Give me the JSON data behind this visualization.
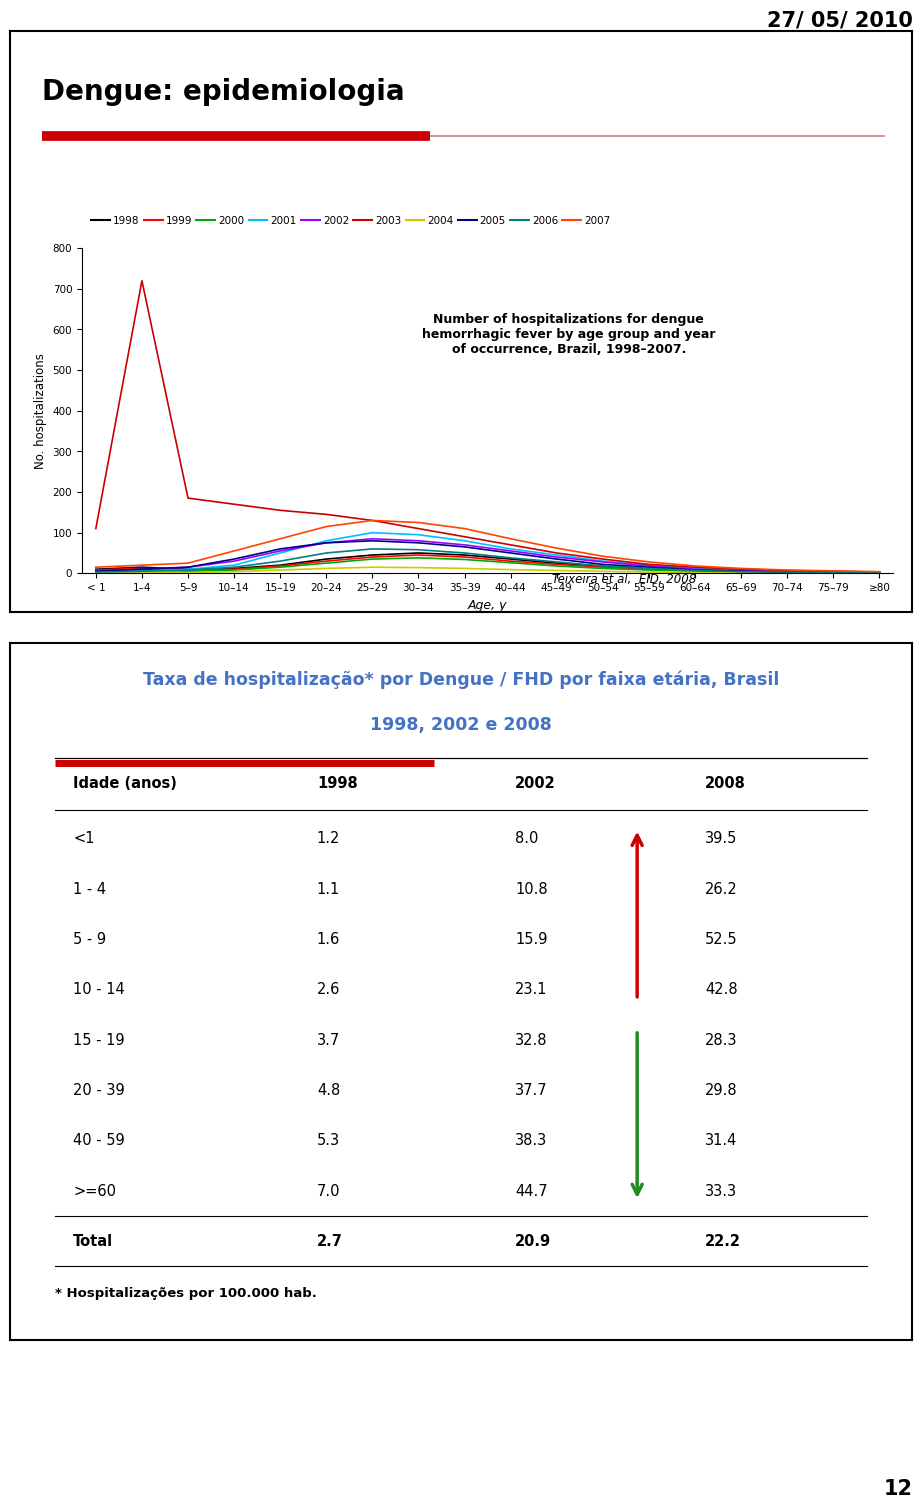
{
  "date_text": "27/ 05/ 2010",
  "page_number": "12",
  "slide_title": "Dengue: epidemiologia",
  "chart_annotation": "Number of hospitalizations for dengue\nhemorrhagic fever by age group and year\nof occurrence, Brazil, 1998–2007.",
  "source_text": "Teixeira et al,  EID, 2008",
  "table_title_line1": "Taxa de hospitalização* por Dengue / FHD por faixa etária, Brasil",
  "table_title_line2": "1998, 2002 e 2008",
  "table_title_color": "#4472C4",
  "table_headers": [
    "Idade (anos)",
    "1998",
    "2002",
    "2008"
  ],
  "table_rows": [
    [
      "<1",
      "1.2",
      "8.0",
      "39.5"
    ],
    [
      "1 - 4",
      "1.1",
      "10.8",
      "26.2"
    ],
    [
      "5 - 9",
      "1.6",
      "15.9",
      "52.5"
    ],
    [
      "10 - 14",
      "2.6",
      "23.1",
      "42.8"
    ],
    [
      "15 - 19",
      "3.7",
      "32.8",
      "28.3"
    ],
    [
      "20 - 39",
      "4.8",
      "37.7",
      "29.8"
    ],
    [
      "40 - 59",
      "5.3",
      "38.3",
      "31.4"
    ],
    [
      ">=60",
      "7.0",
      "44.7",
      "33.3"
    ],
    [
      "Total",
      "2.7",
      "20.9",
      "22.2"
    ]
  ],
  "footnote": "* Hospitalizações por 100.000 hab.",
  "ylabel": "No. hospitalizations",
  "xlabel": "Age, y",
  "age_groups": [
    "< 1",
    "1–4",
    "5–9",
    "10–14",
    "15–19",
    "20–24",
    "25–29",
    "30–34",
    "35–39",
    "40–44",
    "45–49",
    "50–54",
    "55–59",
    "60–64",
    "65–69",
    "70–74",
    "75–79",
    "≥80"
  ],
  "series": {
    "1998": {
      "color": "#000000",
      "data": [
        10,
        15,
        10,
        12,
        20,
        35,
        45,
        50,
        45,
        35,
        25,
        18,
        12,
        8,
        5,
        4,
        3,
        2
      ]
    },
    "1999": {
      "color": "#FF0000",
      "data": [
        8,
        12,
        8,
        10,
        18,
        30,
        40,
        45,
        40,
        30,
        22,
        15,
        10,
        6,
        4,
        3,
        2,
        2
      ]
    },
    "2000": {
      "color": "#00AA00",
      "data": [
        5,
        8,
        5,
        8,
        15,
        25,
        35,
        38,
        34,
        26,
        18,
        12,
        8,
        5,
        3,
        2,
        2,
        1
      ]
    },
    "2001": {
      "color": "#00BFFF",
      "data": [
        5,
        8,
        10,
        20,
        50,
        80,
        100,
        95,
        80,
        60,
        45,
        30,
        20,
        12,
        8,
        5,
        4,
        3
      ]
    },
    "2002": {
      "color": "#9B00FF",
      "data": [
        5,
        10,
        15,
        30,
        55,
        75,
        85,
        80,
        70,
        55,
        40,
        28,
        18,
        10,
        6,
        4,
        3,
        2
      ]
    },
    "2003": {
      "color": "#CC0000",
      "data": [
        110,
        720,
        185,
        170,
        155,
        145,
        130,
        110,
        90,
        70,
        50,
        35,
        22,
        15,
        10,
        7,
        5,
        3
      ]
    },
    "2004": {
      "color": "#CCCC00",
      "data": [
        2,
        3,
        2,
        4,
        8,
        12,
        15,
        14,
        12,
        9,
        7,
        5,
        3,
        2,
        1,
        1,
        1,
        1
      ]
    },
    "2005": {
      "color": "#00008B",
      "data": [
        5,
        10,
        15,
        35,
        60,
        75,
        80,
        75,
        65,
        50,
        35,
        22,
        15,
        8,
        5,
        3,
        2,
        2
      ]
    },
    "2006": {
      "color": "#008080",
      "data": [
        3,
        5,
        8,
        15,
        30,
        50,
        60,
        58,
        50,
        38,
        28,
        18,
        12,
        7,
        4,
        3,
        2,
        1
      ]
    },
    "2007": {
      "color": "#FF4500",
      "data": [
        15,
        20,
        25,
        55,
        85,
        115,
        130,
        125,
        110,
        85,
        62,
        42,
        28,
        18,
        12,
        8,
        6,
        4
      ]
    }
  },
  "ylim_chart": [
    0,
    800
  ],
  "yticks_chart": [
    0,
    100,
    200,
    300,
    400,
    500,
    600,
    700,
    800
  ],
  "background_color": "#FFFFFF",
  "box_bg": "#FFFFFF",
  "outer_bg": "#FFFFFF"
}
